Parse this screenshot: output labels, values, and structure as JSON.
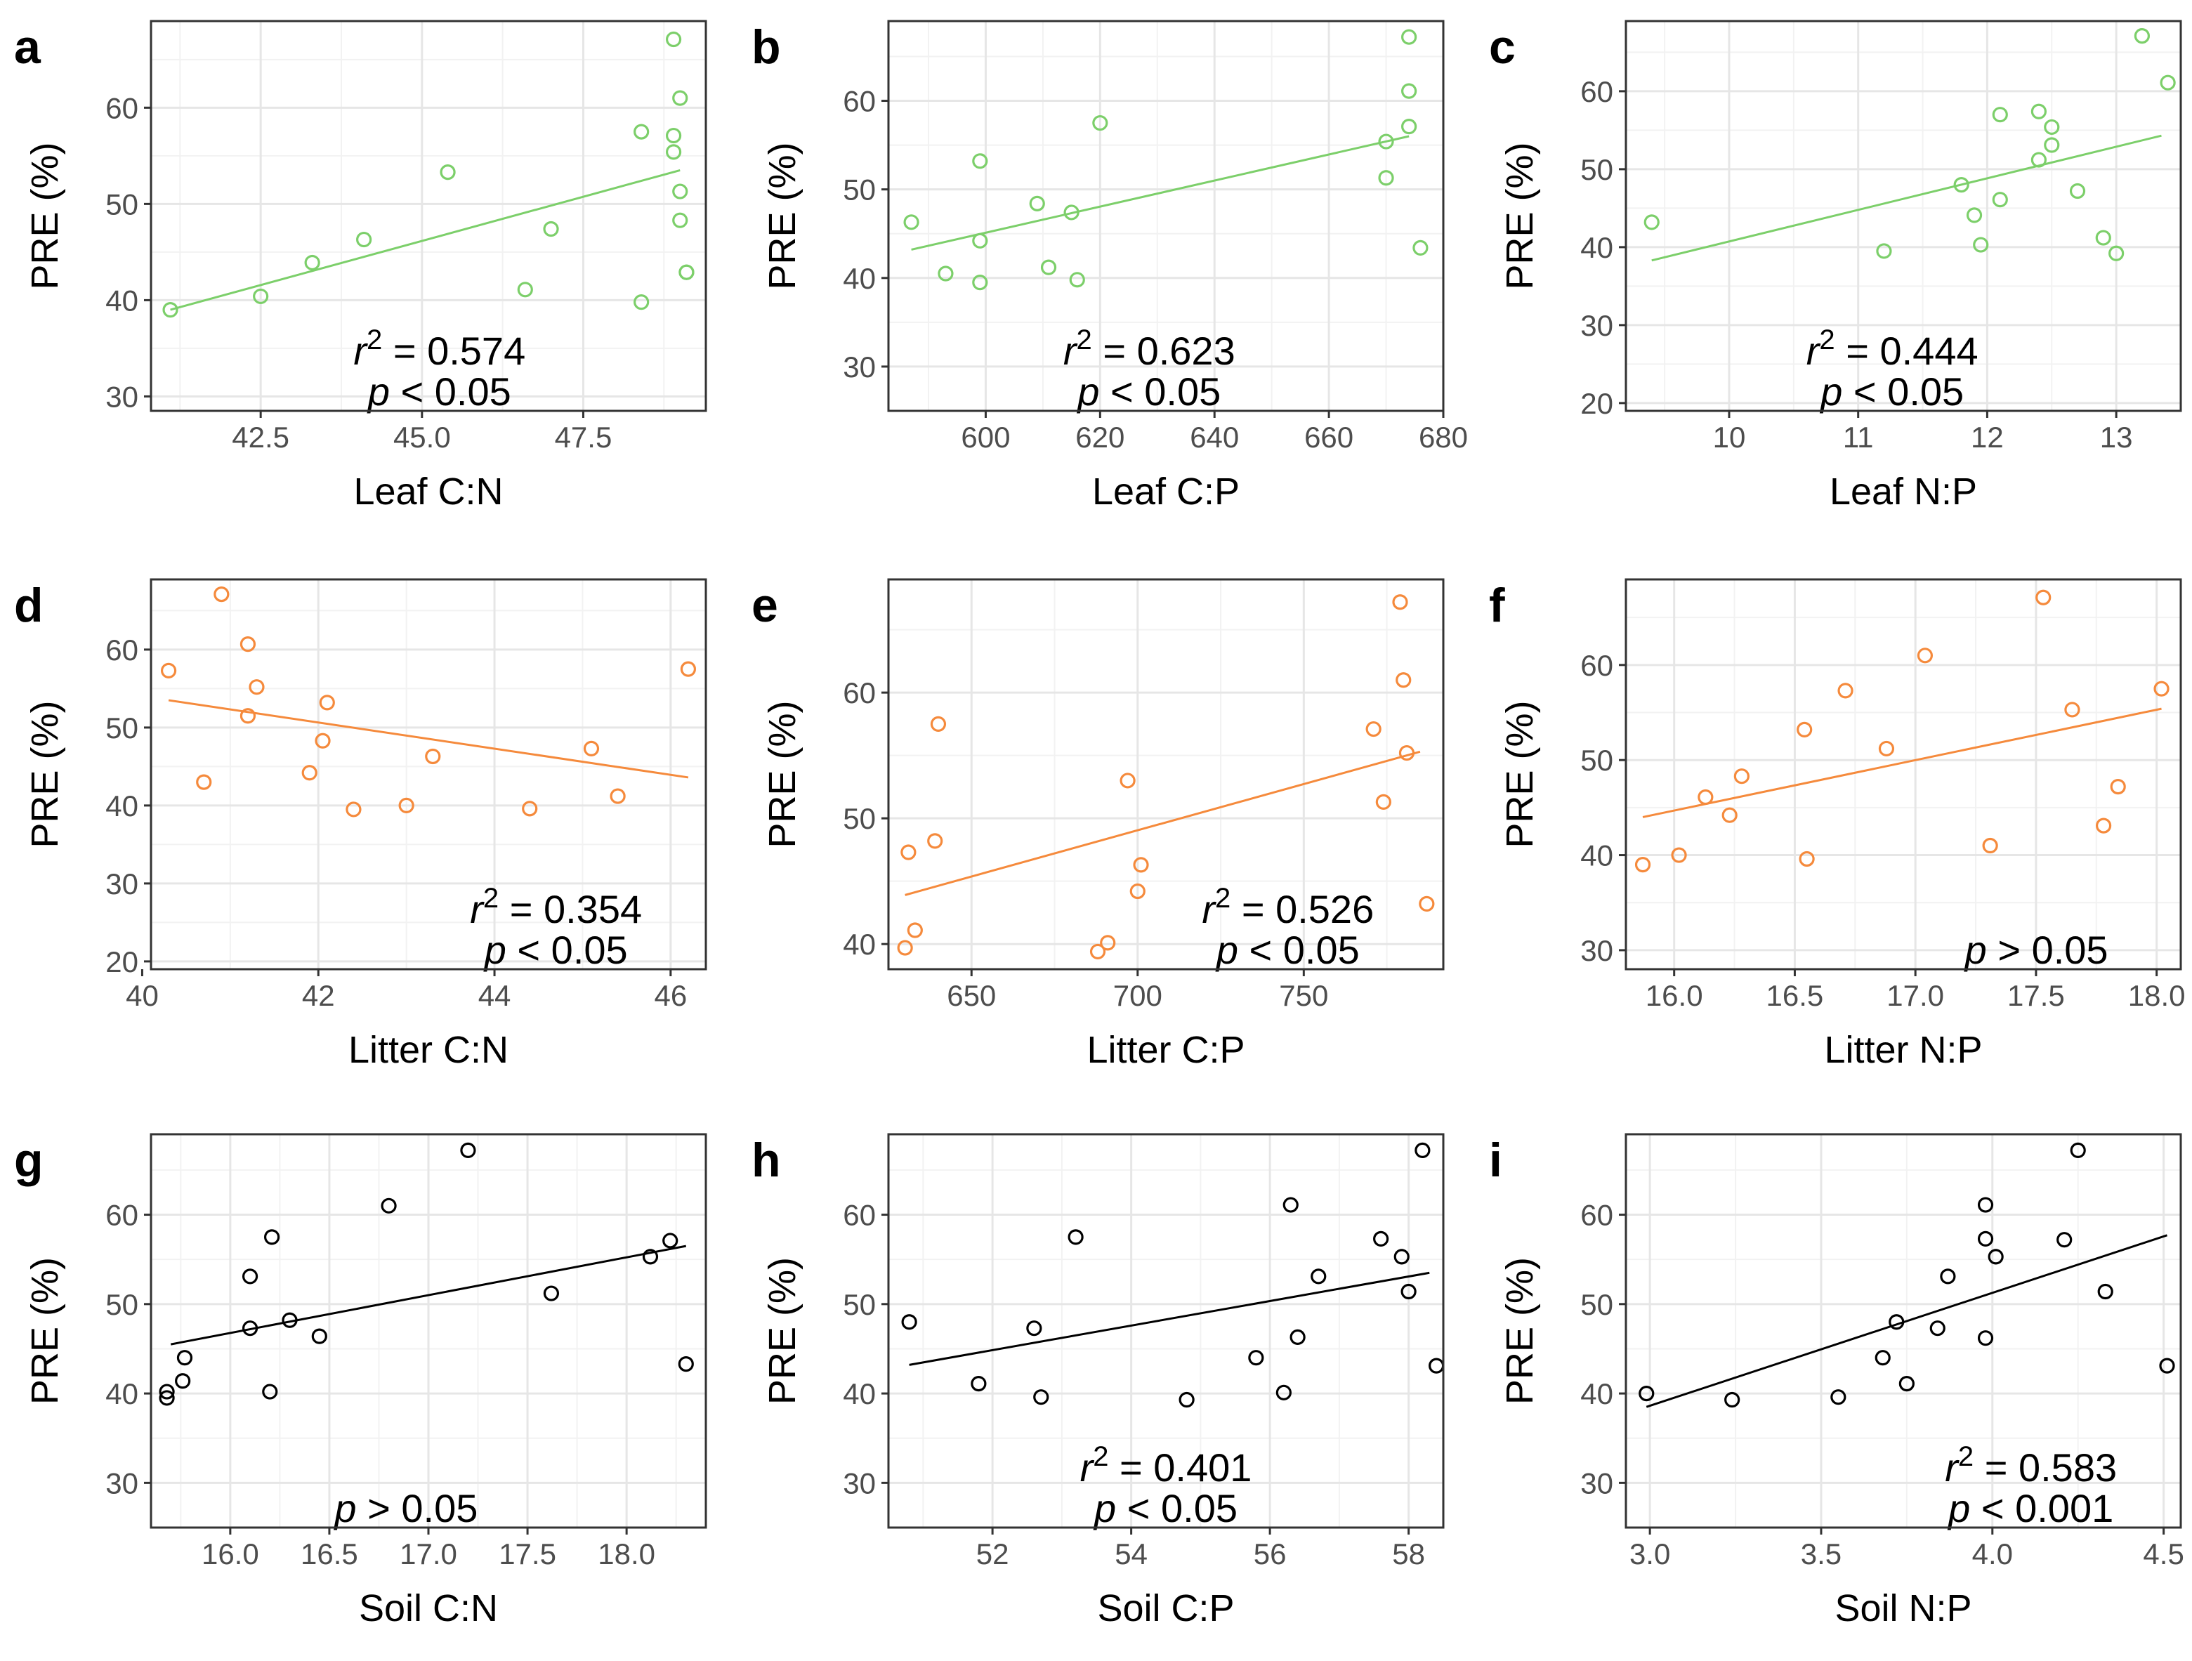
{
  "colors": {
    "leaf": "#7ccf6a",
    "litter": "#f58a3c",
    "soil": "#000000"
  },
  "chart_data": [
    {
      "id": "a",
      "type": "scatter",
      "xlabel": "Leaf C:N",
      "ylabel": "PRE (%)",
      "color": "leaf",
      "xlim": [
        40.8,
        49.4
      ],
      "ylim": [
        28.5,
        69
      ],
      "xticks": [
        42.5,
        45.0,
        47.5
      ],
      "xtick_labels": [
        "42.5",
        "45.0",
        "47.5"
      ],
      "yticks": [
        30,
        40,
        50,
        60
      ],
      "ytick_labels": [
        "30",
        "40",
        "50",
        "60"
      ],
      "x": [
        41.1,
        42.5,
        43.3,
        44.1,
        45.4,
        46.6,
        47.0,
        48.4,
        48.4,
        48.9,
        48.9,
        48.9,
        49.0,
        49.0,
        49.0,
        49.1,
        49.1
      ],
      "y": [
        39.0,
        40.4,
        43.9,
        46.3,
        53.3,
        41.1,
        47.4,
        57.5,
        39.8,
        67.1,
        55.4,
        57.1,
        61.0,
        51.3,
        48.3,
        42.9,
        42.9
      ],
      "fit": [
        [
          41.1,
          39.0
        ],
        [
          49.0,
          53.5
        ]
      ],
      "r2": "0.574",
      "p": "< 0.05"
    },
    {
      "id": "b",
      "type": "scatter",
      "xlabel": "Leaf C:P",
      "ylabel": "PRE (%)",
      "color": "leaf",
      "xlim": [
        583,
        680
      ],
      "ylim": [
        25,
        69
      ],
      "xticks": [
        600,
        620,
        640,
        660,
        680
      ],
      "xtick_labels": [
        "600",
        "620",
        "640",
        "660",
        "680"
      ],
      "yticks": [
        30,
        40,
        50,
        60
      ],
      "ytick_labels": [
        "30",
        "40",
        "50",
        "60"
      ],
      "x": [
        587,
        593,
        599,
        599,
        599,
        609,
        611,
        615,
        616,
        620,
        670,
        670,
        674,
        674,
        674,
        676
      ],
      "y": [
        46.3,
        40.5,
        39.5,
        44.2,
        53.2,
        48.4,
        41.2,
        47.4,
        39.8,
        57.5,
        55.4,
        51.3,
        67.2,
        61.1,
        57.1,
        43.4
      ],
      "fit": [
        [
          587,
          43.2
        ],
        [
          674,
          56.0
        ]
      ],
      "r2": "0.623",
      "p": "< 0.05"
    },
    {
      "id": "c",
      "type": "scatter",
      "xlabel": "Leaf N:P",
      "ylabel": "PRE (%)",
      "color": "leaf",
      "xlim": [
        9.2,
        13.5
      ],
      "ylim": [
        19,
        69
      ],
      "xticks": [
        10,
        11,
        12,
        13
      ],
      "xtick_labels": [
        "10",
        "11",
        "12",
        "13"
      ],
      "yticks": [
        20,
        30,
        40,
        50,
        60
      ],
      "ytick_labels": [
        "20",
        "30",
        "40",
        "50",
        "60"
      ],
      "x": [
        9.4,
        11.2,
        11.8,
        11.9,
        11.95,
        12.1,
        12.1,
        12.4,
        12.4,
        12.5,
        12.5,
        12.7,
        12.9,
        13.0,
        13.2,
        13.4
      ],
      "y": [
        43.2,
        39.5,
        48.0,
        44.1,
        40.3,
        46.1,
        57.0,
        51.2,
        57.4,
        55.4,
        53.1,
        47.2,
        41.2,
        39.2,
        67.1,
        61.1
      ],
      "fit": [
        [
          9.4,
          38.3
        ],
        [
          13.35,
          54.3
        ]
      ],
      "r2": "0.444",
      "p": "< 0.05"
    },
    {
      "id": "d",
      "type": "scatter",
      "xlabel": "Litter C:N",
      "ylabel": "PRE (%)",
      "color": "litter",
      "xlim": [
        40.1,
        46.4
      ],
      "ylim": [
        19,
        69
      ],
      "xticks": [
        40,
        42,
        44,
        46
      ],
      "xtick_labels": [
        "40",
        "42",
        "44",
        "46"
      ],
      "yticks": [
        20,
        30,
        40,
        50,
        60
      ],
      "ytick_labels": [
        "20",
        "30",
        "40",
        "50",
        "60"
      ],
      "x": [
        40.3,
        40.7,
        40.9,
        41.2,
        41.2,
        41.3,
        41.9,
        42.05,
        42.1,
        42.4,
        43.0,
        43.3,
        44.4,
        45.1,
        45.4,
        46.2
      ],
      "y": [
        57.3,
        43.0,
        67.1,
        60.7,
        51.5,
        55.2,
        44.2,
        48.3,
        53.2,
        39.5,
        40.0,
        46.3,
        39.6,
        47.3,
        41.2,
        57.5
      ],
      "fit": [
        [
          40.3,
          53.5
        ],
        [
          46.2,
          43.6
        ]
      ],
      "r2": "0.354",
      "p": "< 0.05"
    },
    {
      "id": "e",
      "type": "scatter",
      "xlabel": "Litter C:P",
      "ylabel": "PRE (%)",
      "color": "litter",
      "xlim": [
        625,
        792
      ],
      "ylim": [
        38,
        69
      ],
      "xticks": [
        650,
        700,
        750
      ],
      "xtick_labels": [
        "650",
        "700",
        "750"
      ],
      "yticks": [
        40,
        50,
        60
      ],
      "ytick_labels": [
        "40",
        "50",
        "60"
      ],
      "x": [
        630,
        631,
        633,
        639,
        640,
        688,
        691,
        697,
        700,
        701,
        771,
        774,
        779,
        780,
        781,
        787
      ],
      "y": [
        39.7,
        47.3,
        41.1,
        48.2,
        57.5,
        39.4,
        40.1,
        53.0,
        44.2,
        46.3,
        57.1,
        51.3,
        67.2,
        61.0,
        55.2,
        43.2
      ],
      "fit": [
        [
          630,
          43.9
        ],
        [
          785,
          55.3
        ]
      ],
      "r2": "0.526",
      "p": "< 0.05"
    },
    {
      "id": "f",
      "type": "scatter",
      "xlabel": "Litter N:P",
      "ylabel": "PRE (%)",
      "color": "litter",
      "xlim": [
        15.8,
        18.1
      ],
      "ylim": [
        28,
        69
      ],
      "xticks": [
        16.0,
        16.5,
        17.0,
        17.5,
        18.0
      ],
      "xtick_labels": [
        "16.0",
        "16.5",
        "17.0",
        "17.5",
        "18.0"
      ],
      "yticks": [
        30,
        40,
        50,
        60
      ],
      "ytick_labels": [
        "30",
        "40",
        "50",
        "60"
      ],
      "x": [
        15.87,
        16.02,
        16.13,
        16.23,
        16.28,
        16.54,
        16.55,
        16.71,
        16.88,
        17.04,
        17.31,
        17.53,
        17.65,
        17.78,
        17.84,
        18.02
      ],
      "y": [
        39.0,
        40.0,
        46.1,
        44.2,
        48.3,
        53.2,
        39.6,
        57.3,
        51.2,
        61.0,
        41.0,
        67.1,
        55.3,
        43.1,
        47.2,
        57.5
      ],
      "fit": [
        [
          15.87,
          44.0
        ],
        [
          18.02,
          55.4
        ]
      ],
      "r2": "",
      "p": "> 0.05"
    },
    {
      "id": "g",
      "type": "scatter",
      "xlabel": "Soil C:N",
      "ylabel": "PRE (%)",
      "color": "soil",
      "xlim": [
        15.6,
        18.4
      ],
      "ylim": [
        25,
        69
      ],
      "xticks": [
        16.0,
        16.5,
        17.0,
        17.5,
        18.0
      ],
      "xtick_labels": [
        "16.0",
        "16.5",
        "17.0",
        "17.5",
        "18.0"
      ],
      "yticks": [
        30,
        40,
        50,
        60
      ],
      "ytick_labels": [
        "30",
        "40",
        "50",
        "60"
      ],
      "x": [
        15.68,
        15.68,
        15.76,
        15.77,
        16.1,
        16.1,
        16.2,
        16.21,
        16.3,
        16.45,
        16.8,
        17.2,
        17.62,
        18.12,
        18.22,
        18.3
      ],
      "y": [
        39.5,
        40.2,
        41.4,
        44.0,
        53.1,
        47.3,
        40.2,
        57.5,
        48.2,
        46.4,
        61.0,
        67.2,
        51.2,
        55.3,
        57.1,
        43.3
      ],
      "fit": [
        [
          15.7,
          45.5
        ],
        [
          18.3,
          56.5
        ]
      ],
      "r2": "",
      "p": "> 0.05"
    },
    {
      "id": "h",
      "type": "scatter",
      "xlabel": "Soil C:P",
      "ylabel": "PRE (%)",
      "color": "soil",
      "xlim": [
        50.5,
        58.5
      ],
      "ylim": [
        25,
        69
      ],
      "xticks": [
        52,
        54,
        56,
        58
      ],
      "xtick_labels": [
        "52",
        "54",
        "56",
        "58"
      ],
      "yticks": [
        30,
        40,
        50,
        60
      ],
      "ytick_labels": [
        "30",
        "40",
        "50",
        "60"
      ],
      "x": [
        50.8,
        51.8,
        52.6,
        52.7,
        53.2,
        54.8,
        55.8,
        56.2,
        56.3,
        56.4,
        56.7,
        57.6,
        57.9,
        58.0,
        58.2,
        58.4
      ],
      "y": [
        48.0,
        41.1,
        47.3,
        39.6,
        57.5,
        39.3,
        44.0,
        40.1,
        61.1,
        46.3,
        53.1,
        57.3,
        55.3,
        51.4,
        67.2,
        43.1
      ],
      "fit": [
        [
          50.8,
          43.2
        ],
        [
          58.3,
          53.5
        ]
      ],
      "r2": "0.401",
      "p": "< 0.05"
    },
    {
      "id": "i",
      "type": "scatter",
      "xlabel": "Soil N:P",
      "ylabel": "PRE (%)",
      "color": "soil",
      "xlim": [
        2.93,
        4.55
      ],
      "ylim": [
        25,
        69
      ],
      "xticks": [
        3.0,
        3.5,
        4.0,
        4.5
      ],
      "xtick_labels": [
        "3.0",
        "3.5",
        "4.0",
        "4.5"
      ],
      "yticks": [
        30,
        40,
        50,
        60
      ],
      "ytick_labels": [
        "30",
        "40",
        "50",
        "60"
      ],
      "x": [
        2.99,
        3.24,
        3.55,
        3.68,
        3.72,
        3.75,
        3.84,
        3.87,
        3.98,
        3.98,
        3.98,
        4.01,
        4.21,
        4.25,
        4.33,
        4.51
      ],
      "y": [
        40.0,
        39.3,
        39.6,
        44.0,
        48.0,
        41.1,
        47.3,
        53.1,
        61.1,
        57.3,
        46.2,
        55.3,
        57.2,
        67.2,
        51.4,
        43.1
      ],
      "fit": [
        [
          2.99,
          38.5
        ],
        [
          4.51,
          57.7
        ]
      ],
      "r2": "0.583",
      "p": "< 0.001"
    }
  ]
}
